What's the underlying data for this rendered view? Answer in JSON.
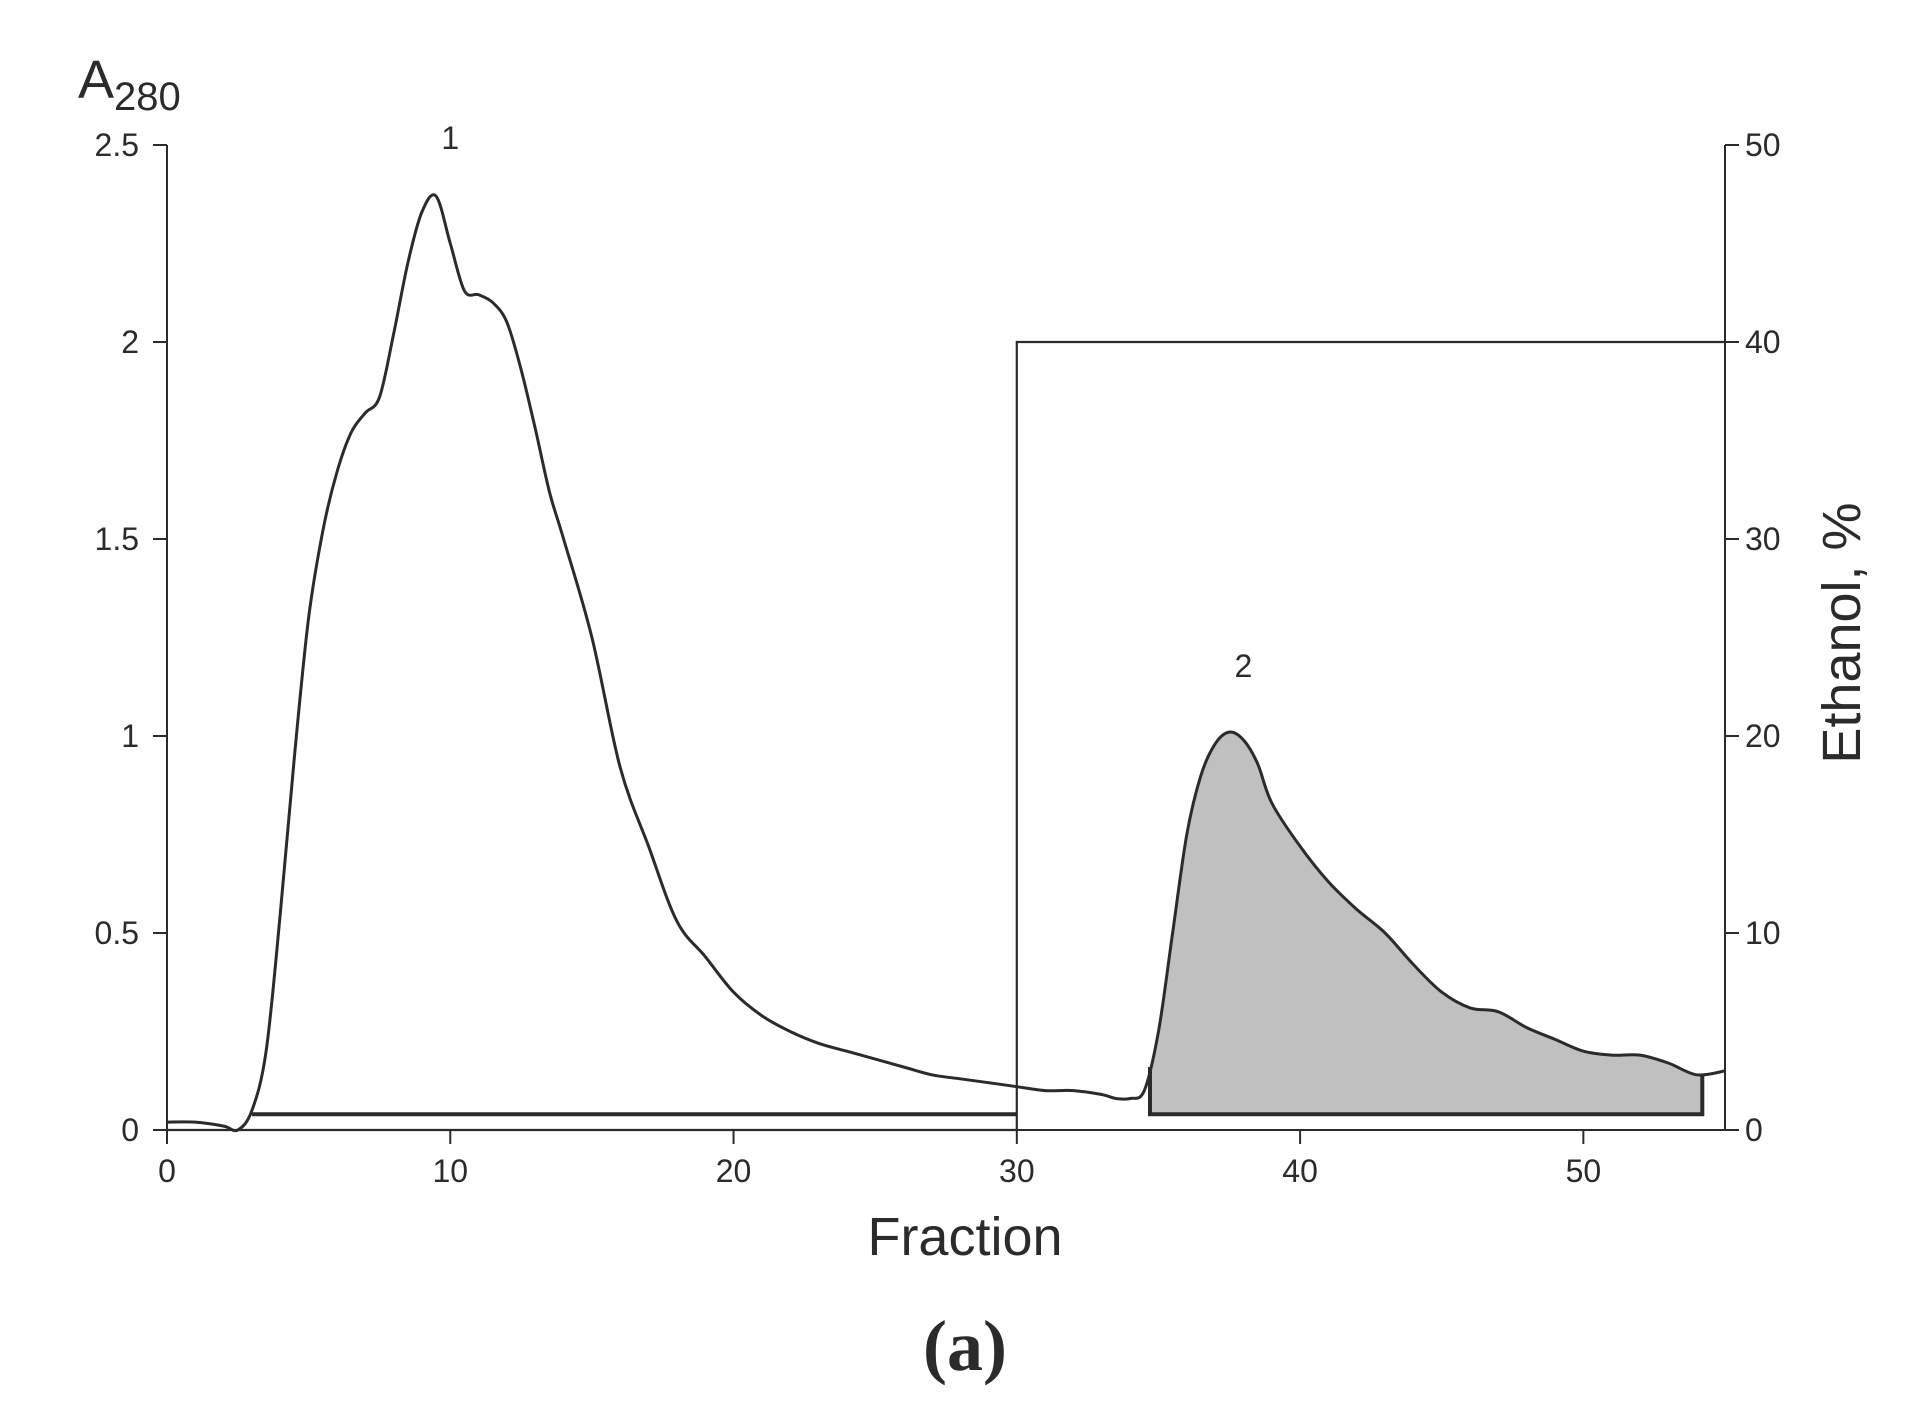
{
  "chart_data": {
    "type": "line",
    "title": "",
    "panel_label": "(a)",
    "xlabel": "Fraction",
    "ylabel_left": {
      "main": "A",
      "subscript": "280"
    },
    "ylabel_right": "Ethanol, %",
    "xlim": [
      0,
      55
    ],
    "ylim_left": [
      0,
      2.5
    ],
    "ylim_right": [
      0,
      50
    ],
    "x_ticks": [
      0,
      10,
      20,
      30,
      40,
      50
    ],
    "x_tick_labels": [
      "0",
      "10",
      "20",
      "30",
      "40",
      "50"
    ],
    "y_left_ticks": [
      0,
      0.5,
      1,
      1.5,
      2,
      2.5
    ],
    "y_left_tick_labels": [
      "0",
      "0.5",
      "1",
      "1.5",
      "2",
      "2.5"
    ],
    "y_right_ticks": [
      0,
      10,
      20,
      30,
      40,
      50
    ],
    "y_right_tick_labels": [
      "0",
      "10",
      "20",
      "30",
      "40",
      "50"
    ],
    "grid": false,
    "legend": "none",
    "series": [
      {
        "axis": "left",
        "x": [
          0,
          1,
          2,
          2.5,
          3,
          3.5,
          4,
          4.5,
          5,
          5.5,
          6,
          6.5,
          7,
          7.5,
          8,
          8.5,
          9,
          9.5,
          10,
          10.5,
          11,
          11.5,
          12,
          12.5,
          13,
          13.5,
          14,
          15,
          16,
          17,
          18,
          19,
          20,
          21,
          22,
          23,
          24,
          25,
          26,
          27,
          28,
          29,
          30,
          31,
          32,
          33,
          33.5,
          34,
          34.5,
          35,
          35.5,
          36,
          36.5,
          37,
          37.5,
          38,
          38.5,
          39,
          40,
          41,
          42,
          43,
          44,
          45,
          46,
          47,
          48,
          49,
          50,
          51,
          52,
          53,
          54,
          55
        ],
        "y": [
          0.02,
          0.02,
          0.01,
          0.0,
          0.05,
          0.2,
          0.55,
          0.95,
          1.3,
          1.52,
          1.67,
          1.77,
          1.82,
          1.86,
          2.02,
          2.2,
          2.33,
          2.37,
          2.25,
          2.13,
          2.12,
          2.1,
          2.05,
          1.93,
          1.78,
          1.62,
          1.5,
          1.25,
          0.92,
          0.72,
          0.53,
          0.44,
          0.35,
          0.29,
          0.25,
          0.22,
          0.2,
          0.18,
          0.16,
          0.14,
          0.13,
          0.12,
          0.11,
          0.1,
          0.1,
          0.09,
          0.08,
          0.08,
          0.1,
          0.25,
          0.5,
          0.75,
          0.9,
          0.98,
          1.01,
          0.99,
          0.93,
          0.83,
          0.72,
          0.63,
          0.56,
          0.5,
          0.42,
          0.35,
          0.31,
          0.3,
          0.26,
          0.23,
          0.2,
          0.19,
          0.19,
          0.17,
          0.14,
          0.15
        ]
      },
      {
        "axis": "right",
        "x": [
          0,
          30,
          30,
          55
        ],
        "y": [
          0,
          0,
          40,
          40
        ]
      }
    ],
    "shaded_region": {
      "x_start": 34.7,
      "x_end": 54.2,
      "color": "#c0c0c0"
    },
    "baseline_bars": [
      {
        "x_start": 3,
        "x_end": 30,
        "y": 0.04
      },
      {
        "x_start": 34.7,
        "x_end": 54.2,
        "y": 0.04
      }
    ],
    "annotations": [
      {
        "text": "1",
        "x": 10,
        "y": 2.49
      },
      {
        "text": "2",
        "x": 38,
        "y": 1.15
      }
    ]
  }
}
